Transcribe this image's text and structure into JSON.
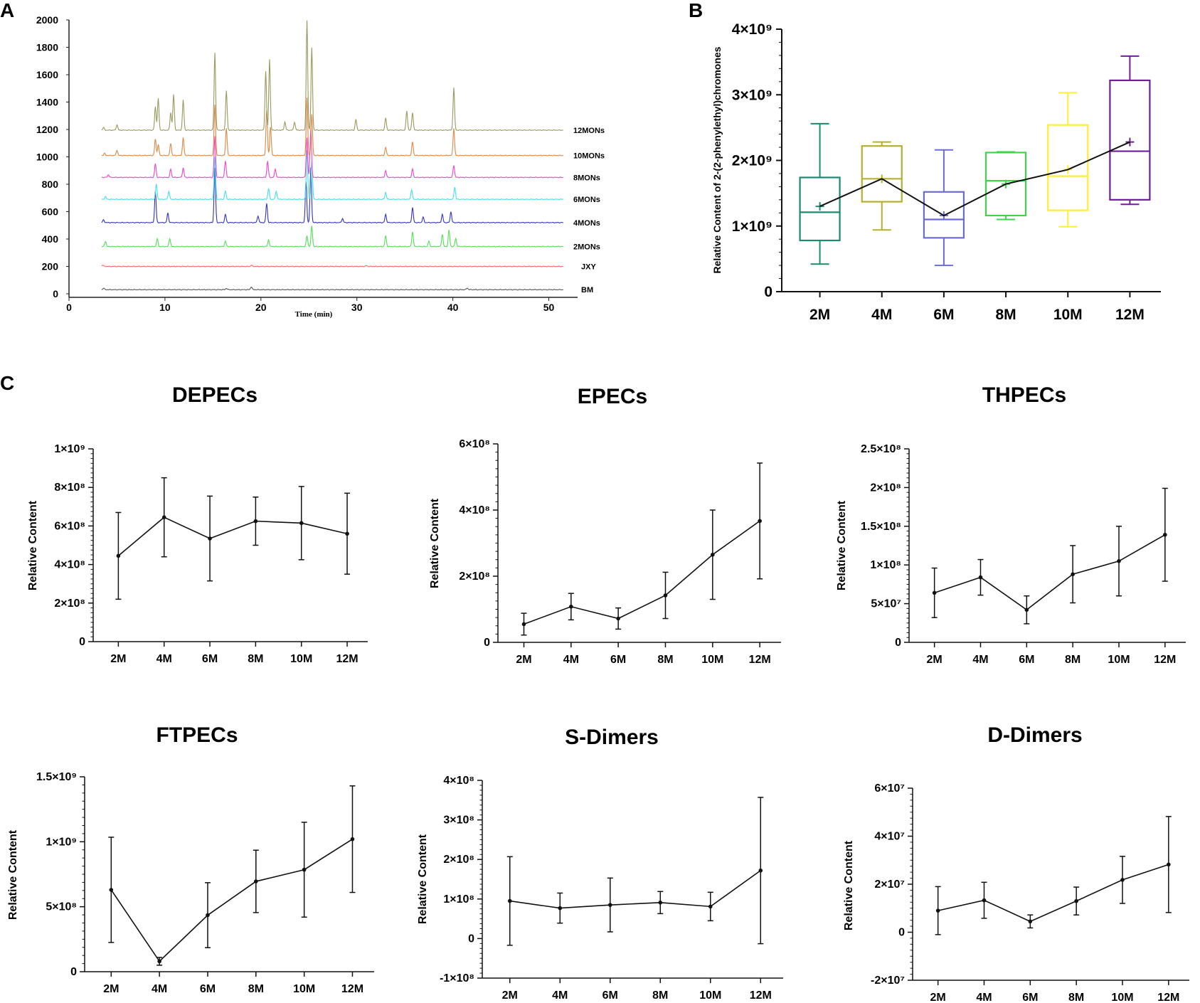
{
  "panels": {
    "a": "A",
    "b": "B",
    "c": "C"
  },
  "chart_data": [
    {
      "id": "A",
      "type": "line",
      "title": "",
      "xlabel": "Time (min)",
      "ylabel": "",
      "xlim": [
        0,
        53
      ],
      "ylim": [
        0,
        2000
      ],
      "xticks": [
        "0",
        "10",
        "20",
        "30",
        "40",
        "50"
      ],
      "yticks": [
        "0",
        "200",
        "400",
        "600",
        "800",
        "1000",
        "1200",
        "1400",
        "1600",
        "1800",
        "2000"
      ],
      "series": [
        {
          "name": "BM",
          "color": "#555555",
          "baseline": 30,
          "peaks": [
            [
              3.6,
              12
            ],
            [
              16.4,
              10
            ],
            [
              19.0,
              22
            ],
            [
              41.5,
              12
            ]
          ]
        },
        {
          "name": "JXY",
          "color": "#ff6060",
          "baseline": 200,
          "peaks": [
            [
              3.5,
              10
            ],
            [
              19.0,
              8
            ],
            [
              31.0,
              6
            ]
          ]
        },
        {
          "name": "2MONs",
          "color": "#55dd55",
          "baseline": 345,
          "peaks": [
            [
              3.8,
              40
            ],
            [
              9.2,
              55
            ],
            [
              10.5,
              60
            ],
            [
              16.3,
              40
            ],
            [
              20.8,
              50
            ],
            [
              24.8,
              80
            ],
            [
              25.3,
              150
            ],
            [
              33.0,
              80
            ],
            [
              35.8,
              110
            ],
            [
              37.5,
              40
            ],
            [
              38.9,
              90
            ],
            [
              39.6,
              120
            ],
            [
              40.3,
              60
            ]
          ]
        },
        {
          "name": "4MONs",
          "color": "#3333bb",
          "baseline": 520,
          "peaks": [
            [
              3.6,
              20
            ],
            [
              9.0,
              230
            ],
            [
              10.3,
              70
            ],
            [
              15.2,
              400
            ],
            [
              16.3,
              60
            ],
            [
              19.7,
              50
            ],
            [
              20.6,
              140
            ],
            [
              24.7,
              300
            ],
            [
              25.2,
              400
            ],
            [
              28.5,
              30
            ],
            [
              33.0,
              60
            ],
            [
              35.8,
              110
            ],
            [
              36.9,
              40
            ],
            [
              38.9,
              60
            ],
            [
              39.8,
              80
            ]
          ]
        },
        {
          "name": "6MONs",
          "color": "#44ddee",
          "baseline": 690,
          "peaks": [
            [
              3.8,
              20
            ],
            [
              9.1,
              110
            ],
            [
              10.4,
              60
            ],
            [
              15.2,
              310
            ],
            [
              16.3,
              60
            ],
            [
              20.8,
              80
            ],
            [
              21.6,
              60
            ],
            [
              24.8,
              360
            ],
            [
              25.3,
              280
            ],
            [
              33.0,
              50
            ],
            [
              35.7,
              70
            ],
            [
              40.2,
              90
            ]
          ]
        },
        {
          "name": "8MONs",
          "color": "#ee44cc",
          "baseline": 850,
          "peaks": [
            [
              4.1,
              20
            ],
            [
              9.0,
              100
            ],
            [
              10.6,
              60
            ],
            [
              11.9,
              70
            ],
            [
              15.2,
              300
            ],
            [
              16.3,
              120
            ],
            [
              20.7,
              120
            ],
            [
              21.5,
              60
            ],
            [
              24.8,
              290
            ],
            [
              25.2,
              360
            ],
            [
              33.0,
              50
            ],
            [
              35.8,
              60
            ],
            [
              40.1,
              90
            ]
          ]
        },
        {
          "name": "10MONs",
          "color": "#dd8844",
          "baseline": 1010,
          "peaks": [
            [
              3.7,
              15
            ],
            [
              5.0,
              40
            ],
            [
              9.0,
              120
            ],
            [
              9.3,
              80
            ],
            [
              10.6,
              90
            ],
            [
              11.9,
              130
            ],
            [
              15.2,
              370
            ],
            [
              16.4,
              200
            ],
            [
              20.6,
              330
            ],
            [
              21.0,
              210
            ],
            [
              24.8,
              420
            ],
            [
              25.3,
              300
            ],
            [
              33.0,
              60
            ],
            [
              35.8,
              100
            ],
            [
              40.1,
              200
            ]
          ]
        },
        {
          "name": "12MONs",
          "color": "#99995e",
          "baseline": 1195,
          "peaks": [
            [
              3.6,
              20
            ],
            [
              5.0,
              40
            ],
            [
              9.0,
              170
            ],
            [
              9.3,
              230
            ],
            [
              10.6,
              130
            ],
            [
              10.9,
              260
            ],
            [
              11.9,
              220
            ],
            [
              15.2,
              565
            ],
            [
              16.4,
              290
            ],
            [
              20.5,
              430
            ],
            [
              20.9,
              520
            ],
            [
              22.5,
              60
            ],
            [
              23.5,
              60
            ],
            [
              24.8,
              800
            ],
            [
              25.3,
              600
            ],
            [
              29.9,
              80
            ],
            [
              33.0,
              90
            ],
            [
              35.2,
              140
            ],
            [
              35.8,
              130
            ],
            [
              40.1,
              310
            ]
          ]
        }
      ]
    },
    {
      "id": "B",
      "type": "box",
      "ylabel": "Relative Content of 2-(2-phenylethyl)chromones",
      "categories": [
        "2M",
        "4M",
        "6M",
        "8M",
        "10M",
        "12M"
      ],
      "colors": [
        "#1a8a70",
        "#b5b02c",
        "#6b6bd8",
        "#3dd64a",
        "#ffee33",
        "#6e1f96"
      ],
      "ylim": [
        0,
        4000000000.0
      ],
      "yticks": [
        {
          "value": 0,
          "label": "0"
        },
        {
          "value": 1000000000.0,
          "label": "1×10⁹"
        },
        {
          "value": 2000000000.0,
          "label": "2×10⁹"
        },
        {
          "value": 3000000000.0,
          "label": "3×10⁹"
        },
        {
          "value": 4000000000.0,
          "label": "4×10⁹"
        }
      ],
      "boxes": [
        {
          "min": 420000000.0,
          "q1": 780000000.0,
          "median": 1210000000.0,
          "q3": 1740000000.0,
          "max": 2560000000.0,
          "mean": 1300000000.0
        },
        {
          "min": 940000000.0,
          "q1": 1370000000.0,
          "median": 1720000000.0,
          "q3": 2220000000.0,
          "max": 2280000000.0,
          "mean": 1720000000.0
        },
        {
          "min": 400000000.0,
          "q1": 820000000.0,
          "median": 1100000000.0,
          "q3": 1520000000.0,
          "max": 2160000000.0,
          "mean": 1160000000.0
        },
        {
          "min": 1100000000.0,
          "q1": 1160000000.0,
          "median": 1690000000.0,
          "q3": 2120000000.0,
          "max": 2130000000.0,
          "mean": 1640000000.0
        },
        {
          "min": 990000000.0,
          "q1": 1240000000.0,
          "median": 1760000000.0,
          "q3": 2540000000.0,
          "max": 3030000000.0,
          "mean": 1860000000.0
        },
        {
          "min": 1330000000.0,
          "q1": 1400000000.0,
          "median": 2140000000.0,
          "q3": 3220000000.0,
          "max": 3590000000.0,
          "mean": 2280000000.0
        }
      ]
    },
    {
      "id": "C1",
      "type": "line",
      "title": "DEPECs",
      "ylabel": "Relative Content",
      "categories": [
        "2M",
        "4M",
        "6M",
        "8M",
        "10M",
        "12M"
      ],
      "ylim": [
        0,
        1000000000.0
      ],
      "yticks": [
        {
          "value": 0,
          "label": "0"
        },
        {
          "value": 200000000.0,
          "label": "2×10⁸"
        },
        {
          "value": 400000000.0,
          "label": "4×10⁸"
        },
        {
          "value": 600000000.0,
          "label": "6×10⁸"
        },
        {
          "value": 800000000.0,
          "label": "8×10⁸"
        },
        {
          "value": 1000000000.0,
          "label": "1×10⁹"
        }
      ],
      "values": [
        445000000.0,
        645000000.0,
        535000000.0,
        625000000.0,
        615000000.0,
        560000000.0
      ],
      "errors": [
        225000000.0,
        205000000.0,
        220000000.0,
        125000000.0,
        190000000.0,
        210000000.0
      ]
    },
    {
      "id": "C2",
      "type": "line",
      "title": "EPECs",
      "ylabel": "Relative Content",
      "categories": [
        "2M",
        "4M",
        "6M",
        "8M",
        "10M",
        "12M"
      ],
      "ylim": [
        0,
        600000000.0
      ],
      "yticks": [
        {
          "value": 0,
          "label": "0"
        },
        {
          "value": 200000000.0,
          "label": "2×10⁸"
        },
        {
          "value": 400000000.0,
          "label": "4×10⁸"
        },
        {
          "value": 600000000.0,
          "label": "6×10⁸"
        }
      ],
      "values": [
        55000000.0,
        108000000.0,
        72000000.0,
        142000000.0,
        265000000.0,
        367000000.0
      ],
      "errors": [
        33000000.0,
        40000000.0,
        32000000.0,
        70000000.0,
        135000000.0,
        175000000.0
      ]
    },
    {
      "id": "C3",
      "type": "line",
      "title": "THPECs",
      "ylabel": "Relative Content",
      "categories": [
        "2M",
        "4M",
        "6M",
        "8M",
        "10M",
        "12M"
      ],
      "ylim": [
        0,
        250000000.0
      ],
      "yticks": [
        {
          "value": 0,
          "label": "0"
        },
        {
          "value": 50000000.0,
          "label": "5×10⁷"
        },
        {
          "value": 100000000.0,
          "label": "1×10⁸"
        },
        {
          "value": 150000000.0,
          "label": "1.5×10⁸"
        },
        {
          "value": 200000000.0,
          "label": "2×10⁸"
        },
        {
          "value": 250000000.0,
          "label": "2.5×10⁸"
        }
      ],
      "values": [
        64000000.0,
        84000000.0,
        42000000.0,
        88000000.0,
        105000000.0,
        139000000.0
      ],
      "errors": [
        32000000.0,
        23000000.0,
        18000000.0,
        37000000.0,
        45000000.0,
        60000000.0
      ]
    },
    {
      "id": "C4",
      "type": "line",
      "title": "FTPECs",
      "ylabel": "Relative Content",
      "categories": [
        "2M",
        "4M",
        "6M",
        "8M",
        "10M",
        "12M"
      ],
      "ylim": [
        0,
        1500000000.0
      ],
      "yticks": [
        {
          "value": 0,
          "label": "0"
        },
        {
          "value": 500000000.0,
          "label": "5×10⁸"
        },
        {
          "value": 1000000000.0,
          "label": "1×10⁹"
        },
        {
          "value": 1500000000.0,
          "label": "1.5×10⁹"
        }
      ],
      "values": [
        630000000.0,
        80000000.0,
        435000000.0,
        695000000.0,
        785000000.0,
        1020000000.0
      ],
      "errors": [
        405000000.0,
        30000000.0,
        250000000.0,
        240000000.0,
        365000000.0,
        410000000.0
      ]
    },
    {
      "id": "C5",
      "type": "line",
      "title": "S-Dimers",
      "ylabel": "Relative Content",
      "categories": [
        "2M",
        "4M",
        "6M",
        "8M",
        "10M",
        "12M"
      ],
      "ylim": [
        -100000000.0,
        400000000.0
      ],
      "yticks": [
        {
          "value": -100000000.0,
          "label": "-1×10⁸"
        },
        {
          "value": 0,
          "label": "0"
        },
        {
          "value": 100000000.0,
          "label": "1×10⁸"
        },
        {
          "value": 200000000.0,
          "label": "2×10⁸"
        },
        {
          "value": 300000000.0,
          "label": "3×10⁸"
        },
        {
          "value": 400000000.0,
          "label": "4×10⁸"
        }
      ],
      "values": [
        95000000.0,
        77000000.0,
        85000000.0,
        91000000.0,
        81000000.0,
        172000000.0
      ],
      "errors": [
        112000000.0,
        38000000.0,
        68000000.0,
        28000000.0,
        36000000.0,
        185000000.0
      ]
    },
    {
      "id": "C6",
      "type": "line",
      "title": "D-Dimers",
      "ylabel": "Relative Content",
      "categories": [
        "2M",
        "4M",
        "6M",
        "8M",
        "10M",
        "12M"
      ],
      "ylim": [
        -20000000.0,
        60000000.0
      ],
      "yticks": [
        {
          "value": -20000000.0,
          "label": "-2×10⁷"
        },
        {
          "value": 0,
          "label": "0"
        },
        {
          "value": 20000000.0,
          "label": "2×10⁷"
        },
        {
          "value": 40000000.0,
          "label": "4×10⁷"
        },
        {
          "value": 60000000.0,
          "label": "6×10⁷"
        }
      ],
      "values": [
        9000000.0,
        13300000.0,
        4500000.0,
        13000000.0,
        21800000.0,
        28200000.0
      ],
      "errors": [
        10000000.0,
        7500000.0,
        2700000.0,
        5800000.0,
        9800000.0,
        20000000.0
      ]
    }
  ]
}
